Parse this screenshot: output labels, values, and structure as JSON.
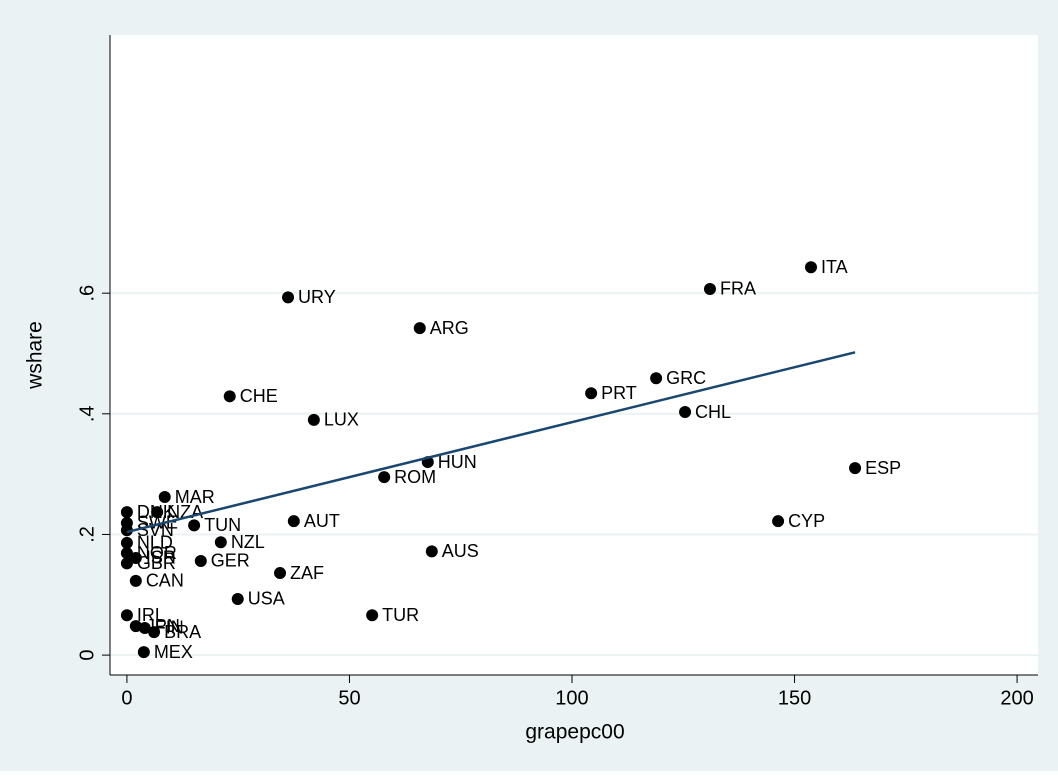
{
  "chart_data": {
    "type": "scatter",
    "x_label": "grapepc00",
    "y_label": "wshare",
    "xlim": [
      -3.8,
      204.7
    ],
    "ylim": [
      -0.033,
      1.028
    ],
    "xticks": [
      0,
      50,
      100,
      150,
      200
    ],
    "yticks": [
      {
        "value": 0,
        "label": "0"
      },
      {
        "value": 0.2,
        "label": ".2"
      },
      {
        "value": 0.4,
        "label": ".4"
      },
      {
        "value": 0.6,
        "label": ".6"
      }
    ],
    "grid": true,
    "point_color": "#000000",
    "labels": [
      "ITA",
      "FRA",
      "URY",
      "ARG",
      "GRC",
      "PRT",
      "CHL",
      "CHE",
      "LUX",
      "HUN",
      "ROM",
      "ESP",
      "MAR",
      "NZA",
      "AUT",
      "TUN",
      "CYP",
      "NZL",
      "GER",
      "AUS",
      "ZAF",
      "CAN",
      "USA",
      "TUR",
      "IRL",
      "JPN",
      "FIN",
      "BRA",
      "MEX",
      "DNK",
      "SWE",
      "SVN",
      "NLD",
      "NOR",
      "ISR",
      "GBR"
    ],
    "x": [
      153.7,
      131.0,
      36.2,
      65.8,
      118.9,
      104.3,
      125.4,
      23.1,
      42.0,
      67.6,
      57.8,
      163.6,
      8.5,
      6.8,
      37.5,
      15.1,
      146.3,
      21.1,
      16.6,
      68.5,
      34.4,
      2.0,
      24.9,
      55.1,
      0,
      2.0,
      4.0,
      6.1,
      3.8,
      0,
      0,
      0,
      0,
      0,
      2.0,
      0
    ],
    "y": [
      0.643,
      0.607,
      0.593,
      0.542,
      0.459,
      0.434,
      0.403,
      0.429,
      0.39,
      0.32,
      0.295,
      0.31,
      0.262,
      0.237,
      0.222,
      0.215,
      0.222,
      0.187,
      0.156,
      0.172,
      0.136,
      0.123,
      0.093,
      0.066,
      0.066,
      0.048,
      0.045,
      0.038,
      0.005,
      0.237,
      0.219,
      0.207,
      0.186,
      0.169,
      0.161,
      0.152
    ],
    "fit_line": {
      "color": "#1a476f",
      "x": [
        0,
        163.6
      ],
      "y": [
        0.204,
        0.502
      ]
    }
  }
}
